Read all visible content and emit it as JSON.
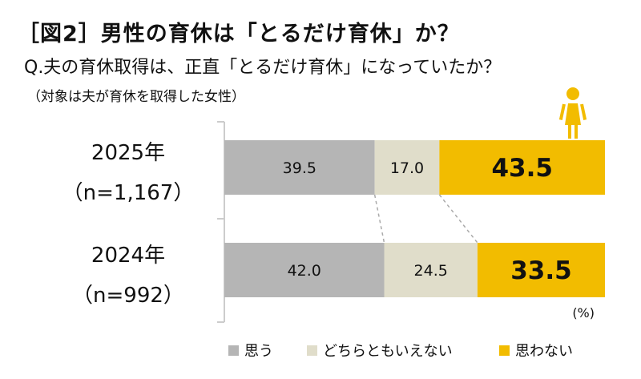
{
  "header": {
    "title": "［図2］男性の育休は「とるだけ育休」か？",
    "question": "Q.夫の育休取得は、正直「とるだけ育休」になっていたか？",
    "note": "（対象は夫が育休を取得した女性）"
  },
  "chart_data": {
    "type": "bar",
    "stacked": true,
    "orientation": "horizontal",
    "unit": "(%)",
    "xlim": [
      0,
      100
    ],
    "legend_position": "bottom",
    "categories": [
      {
        "year": "2025年",
        "n": "（n=1,167）"
      },
      {
        "year": "2024年",
        "n": "（n=992）"
      }
    ],
    "series": [
      {
        "name": "思う",
        "color": "#B5B5B5",
        "values": [
          39.5,
          42.0
        ],
        "labels": [
          "39.5",
          "42.0"
        ]
      },
      {
        "name": "どちらともいえない",
        "color": "#E0DDCA",
        "values": [
          17.0,
          24.5
        ],
        "labels": [
          "17.0",
          "24.5"
        ]
      },
      {
        "name": "思わない",
        "color": "#F2BC00",
        "values": [
          43.5,
          33.5
        ],
        "labels": [
          "43.5",
          "33.5"
        ]
      }
    ],
    "icon": "woman-icon"
  }
}
